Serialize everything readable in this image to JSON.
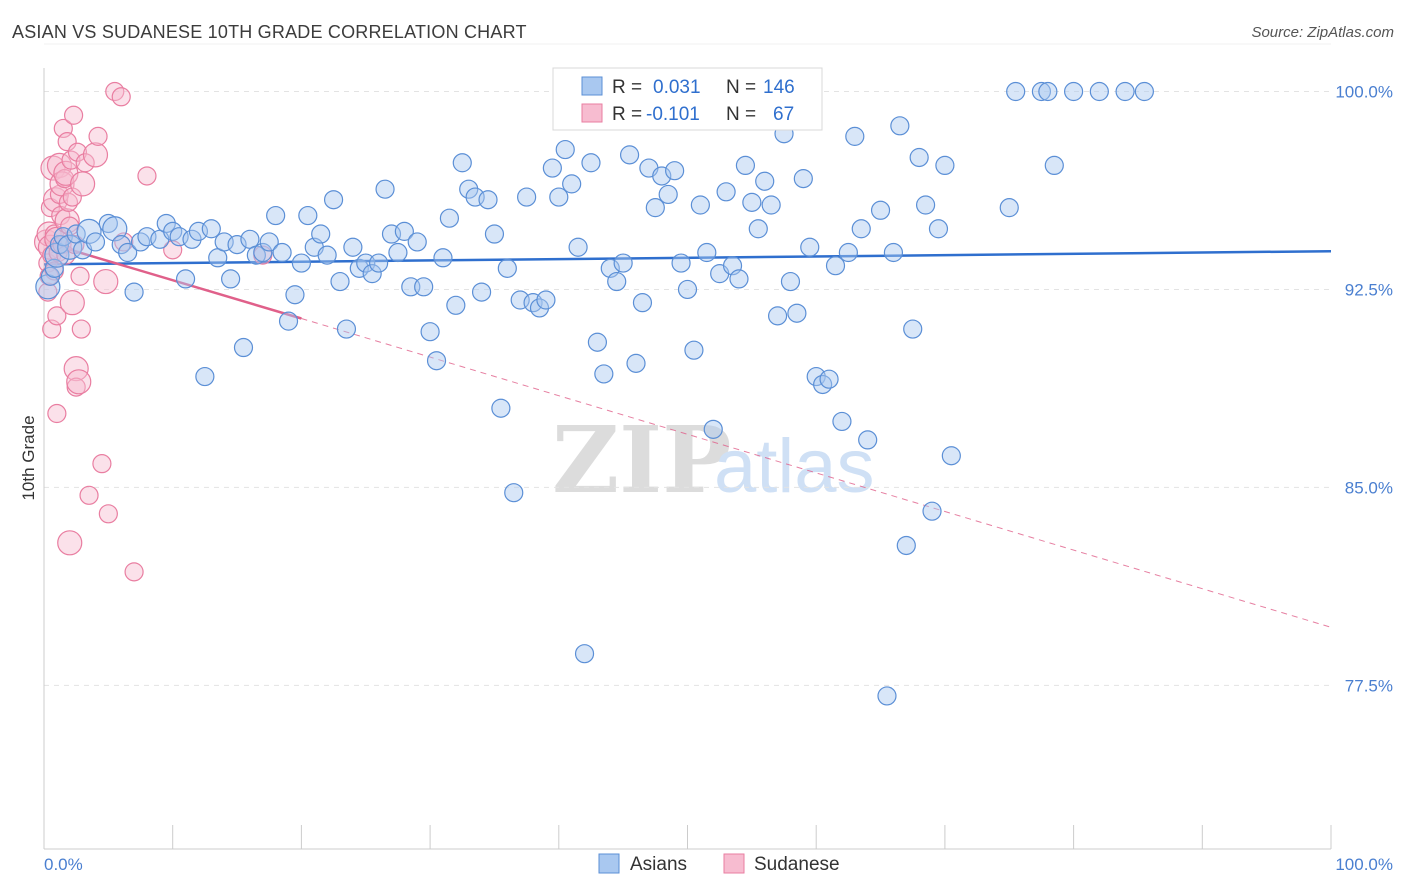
{
  "title": "ASIAN VS SUDANESE 10TH GRADE CORRELATION CHART",
  "source": "Source: ZipAtlas.com",
  "watermark": {
    "zip": "ZIP",
    "atlas": "atlas"
  },
  "colors": {
    "asian_fill": "#a9c8f0",
    "asian_stroke": "#5b8fd6",
    "asian_line": "#2f6fce",
    "sudanese_fill": "#f7bcd0",
    "sudanese_stroke": "#e97ea1",
    "sudanese_line": "#e0608a",
    "axis_label": "#4a7fd0",
    "grid": "#e3e3e3"
  },
  "legend": {
    "asian": {
      "r_label": "R =",
      "r_value": "0.031",
      "n_label": "N =",
      "n_value": "146"
    },
    "sudanese": {
      "r_label": "R =",
      "r_value": "-0.101",
      "n_label": "N =",
      "n_value": "67"
    }
  },
  "chart_data": {
    "type": "scatter",
    "xlabel": "",
    "ylabel": "10th Grade",
    "xlim": [
      0,
      100
    ],
    "ylim": [
      71.3,
      101.8
    ],
    "x_tick_labels": [
      "0.0%",
      "100.0%"
    ],
    "y_ticks": [
      77.5,
      85.0,
      92.5,
      100.0
    ],
    "y_tick_labels": [
      "77.5%",
      "85.0%",
      "92.5%",
      "100.0%"
    ],
    "grid": true,
    "legend_position": "bottom-center",
    "series": [
      {
        "name": "Asians",
        "trend": {
          "x": [
            0,
            100
          ],
          "y": [
            93.45,
            93.95
          ],
          "style": "solid"
        },
        "points": [
          [
            0.3,
            92.6
          ],
          [
            0.5,
            93.0
          ],
          [
            0.8,
            93.3
          ],
          [
            1.0,
            93.8
          ],
          [
            1.2,
            94.2
          ],
          [
            1.5,
            94.5
          ],
          [
            2.0,
            94.1
          ],
          [
            2.5,
            94.6
          ],
          [
            3.0,
            94.0
          ],
          [
            3.5,
            94.7
          ],
          [
            4.0,
            94.3
          ],
          [
            5.0,
            95.0
          ],
          [
            5.5,
            94.8
          ],
          [
            6.0,
            94.2
          ],
          [
            6.5,
            93.9
          ],
          [
            7.0,
            92.4
          ],
          [
            7.5,
            94.3
          ],
          [
            8.0,
            94.5
          ],
          [
            9.0,
            94.4
          ],
          [
            9.5,
            95.0
          ],
          [
            10.0,
            94.7
          ],
          [
            10.5,
            94.5
          ],
          [
            11.0,
            92.9
          ],
          [
            11.5,
            94.4
          ],
          [
            12.0,
            94.7
          ],
          [
            12.5,
            89.2
          ],
          [
            13.0,
            94.8
          ],
          [
            13.5,
            93.7
          ],
          [
            14.0,
            94.3
          ],
          [
            14.5,
            92.9
          ],
          [
            15.0,
            94.2
          ],
          [
            15.5,
            90.3
          ],
          [
            16.0,
            94.4
          ],
          [
            16.5,
            93.8
          ],
          [
            17.0,
            93.9
          ],
          [
            17.5,
            94.3
          ],
          [
            18.0,
            95.3
          ],
          [
            18.5,
            93.9
          ],
          [
            19.0,
            91.3
          ],
          [
            19.5,
            92.3
          ],
          [
            20.0,
            93.5
          ],
          [
            20.5,
            95.3
          ],
          [
            21.0,
            94.1
          ],
          [
            21.5,
            94.6
          ],
          [
            22.0,
            93.8
          ],
          [
            22.5,
            95.9
          ],
          [
            23.0,
            92.8
          ],
          [
            23.5,
            91.0
          ],
          [
            24.0,
            94.1
          ],
          [
            24.5,
            93.3
          ],
          [
            25.0,
            93.5
          ],
          [
            25.5,
            93.1
          ],
          [
            26.0,
            93.5
          ],
          [
            26.5,
            96.3
          ],
          [
            27.0,
            94.6
          ],
          [
            27.5,
            93.9
          ],
          [
            28.0,
            94.7
          ],
          [
            28.5,
            92.6
          ],
          [
            29.0,
            94.3
          ],
          [
            29.5,
            92.6
          ],
          [
            30.0,
            90.9
          ],
          [
            30.5,
            89.8
          ],
          [
            31.0,
            93.7
          ],
          [
            31.5,
            95.2
          ],
          [
            32.0,
            91.9
          ],
          [
            32.5,
            97.3
          ],
          [
            33.0,
            96.3
          ],
          [
            33.5,
            96.0
          ],
          [
            34.0,
            92.4
          ],
          [
            34.5,
            95.9
          ],
          [
            35.0,
            94.6
          ],
          [
            35.5,
            88.0
          ],
          [
            36.0,
            93.3
          ],
          [
            36.5,
            84.8
          ],
          [
            37.0,
            92.1
          ],
          [
            37.5,
            96.0
          ],
          [
            38.0,
            92.0
          ],
          [
            38.5,
            91.8
          ],
          [
            39.0,
            92.1
          ],
          [
            39.5,
            97.1
          ],
          [
            40.0,
            96.0
          ],
          [
            40.5,
            97.8
          ],
          [
            41.0,
            96.5
          ],
          [
            41.5,
            94.1
          ],
          [
            42.0,
            78.7
          ],
          [
            42.5,
            97.3
          ],
          [
            43.0,
            90.5
          ],
          [
            43.5,
            89.3
          ],
          [
            44.0,
            93.3
          ],
          [
            44.5,
            92.8
          ],
          [
            45.0,
            93.5
          ],
          [
            45.5,
            97.6
          ],
          [
            46.0,
            89.7
          ],
          [
            46.5,
            92.0
          ],
          [
            47.0,
            97.1
          ],
          [
            47.5,
            95.6
          ],
          [
            48.0,
            96.8
          ],
          [
            48.5,
            96.1
          ],
          [
            49.0,
            97.0
          ],
          [
            49.5,
            93.5
          ],
          [
            50.0,
            92.5
          ],
          [
            50.5,
            90.2
          ],
          [
            51.0,
            95.7
          ],
          [
            51.5,
            93.9
          ],
          [
            52.0,
            87.2
          ],
          [
            52.5,
            93.1
          ],
          [
            53.0,
            96.2
          ],
          [
            53.5,
            93.4
          ],
          [
            54.0,
            92.9
          ],
          [
            54.5,
            97.2
          ],
          [
            55.0,
            95.8
          ],
          [
            55.5,
            94.8
          ],
          [
            56.0,
            96.6
          ],
          [
            56.5,
            95.7
          ],
          [
            57.0,
            91.5
          ],
          [
            57.5,
            98.4
          ],
          [
            58.0,
            92.8
          ],
          [
            58.5,
            91.6
          ],
          [
            59.0,
            96.7
          ],
          [
            59.5,
            94.1
          ],
          [
            60.0,
            89.2
          ],
          [
            60.5,
            88.9
          ],
          [
            61.0,
            89.1
          ],
          [
            61.5,
            93.4
          ],
          [
            62.0,
            87.5
          ],
          [
            62.5,
            93.9
          ],
          [
            63.0,
            98.3
          ],
          [
            63.5,
            94.8
          ],
          [
            64.0,
            86.8
          ],
          [
            65.0,
            95.5
          ],
          [
            65.5,
            77.1
          ],
          [
            66.0,
            93.9
          ],
          [
            66.5,
            98.7
          ],
          [
            67.0,
            82.8
          ],
          [
            67.5,
            91.0
          ],
          [
            68.0,
            97.5
          ],
          [
            68.5,
            95.7
          ],
          [
            69.0,
            84.1
          ],
          [
            69.5,
            94.8
          ],
          [
            70.0,
            97.2
          ],
          [
            70.5,
            86.2
          ],
          [
            75.0,
            95.6
          ],
          [
            75.5,
            100.0
          ],
          [
            77.5,
            100.0
          ],
          [
            78.0,
            100.0
          ],
          [
            78.5,
            97.2
          ],
          [
            80.0,
            100.0
          ],
          [
            82.0,
            100.0
          ],
          [
            84.0,
            100.0
          ],
          [
            85.5,
            100.0
          ]
        ]
      },
      {
        "name": "Sudanese",
        "trend": {
          "x": [
            0,
            20
          ],
          "y": [
            94.3,
            91.4
          ],
          "style": "solid",
          "extend_to_x": 100,
          "extend_to_y": 79.7
        },
        "points": [
          [
            0.2,
            94.3
          ],
          [
            0.3,
            93.5
          ],
          [
            0.3,
            92.4
          ],
          [
            0.4,
            94.6
          ],
          [
            0.4,
            93.0
          ],
          [
            0.5,
            95.6
          ],
          [
            0.5,
            94.1
          ],
          [
            0.6,
            91.0
          ],
          [
            0.6,
            93.8
          ],
          [
            0.7,
            97.1
          ],
          [
            0.8,
            94.6
          ],
          [
            0.8,
            93.2
          ],
          [
            0.9,
            95.9
          ],
          [
            1.0,
            91.5
          ],
          [
            1.0,
            87.8
          ],
          [
            1.0,
            94.4
          ],
          [
            1.1,
            93.9
          ],
          [
            1.2,
            96.1
          ],
          [
            1.2,
            97.2
          ],
          [
            1.3,
            95.3
          ],
          [
            1.4,
            94.2
          ],
          [
            1.4,
            96.5
          ],
          [
            1.5,
            98.6
          ],
          [
            1.6,
            96.7
          ],
          [
            1.7,
            96.9
          ],
          [
            1.7,
            93.8
          ],
          [
            1.8,
            98.1
          ],
          [
            1.8,
            95.1
          ],
          [
            1.9,
            95.8
          ],
          [
            2.0,
            94.9
          ],
          [
            2.0,
            82.9
          ],
          [
            2.1,
            97.4
          ],
          [
            2.2,
            96.0
          ],
          [
            2.2,
            92.0
          ],
          [
            2.3,
            99.1
          ],
          [
            2.4,
            94.2
          ],
          [
            2.5,
            89.5
          ],
          [
            2.5,
            88.8
          ],
          [
            2.6,
            97.7
          ],
          [
            2.7,
            89.0
          ],
          [
            2.8,
            93.0
          ],
          [
            2.9,
            91.0
          ],
          [
            3.0,
            96.5
          ],
          [
            3.2,
            97.3
          ],
          [
            3.5,
            84.7
          ],
          [
            4.0,
            97.6
          ],
          [
            4.2,
            98.3
          ],
          [
            4.5,
            85.9
          ],
          [
            4.8,
            92.8
          ],
          [
            5.0,
            84.0
          ],
          [
            5.5,
            100.0
          ],
          [
            6.0,
            99.8
          ],
          [
            6.2,
            94.3
          ],
          [
            7.0,
            81.8
          ],
          [
            8.0,
            96.8
          ],
          [
            10.0,
            94.0
          ],
          [
            17.0,
            93.8
          ]
        ]
      }
    ]
  }
}
